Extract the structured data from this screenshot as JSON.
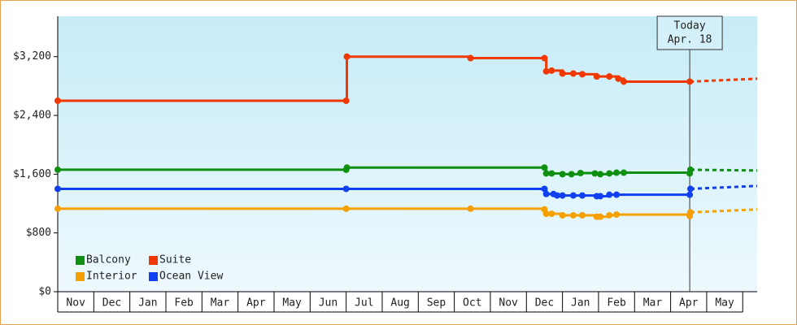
{
  "chart_data": {
    "type": "step-line",
    "x_categories": [
      "Nov",
      "Dec",
      "Jan",
      "Feb",
      "Mar",
      "Apr",
      "May",
      "Jun",
      "Jul",
      "Aug",
      "Sep",
      "Oct",
      "Nov",
      "Dec",
      "Jan",
      "Feb",
      "Mar",
      "Apr",
      "May"
    ],
    "xlim": [
      0,
      19.4
    ],
    "ylim": [
      0,
      3750
    ],
    "yticks": [
      {
        "value": 0,
        "label": "$0"
      },
      {
        "value": 800,
        "label": "$800"
      },
      {
        "value": 1600,
        "label": "$1,600"
      },
      {
        "value": 2400,
        "label": "$2,400"
      },
      {
        "value": 3200,
        "label": "$3,200"
      }
    ],
    "today_x": 17.53,
    "today_label": [
      "Today",
      "Apr. 18"
    ],
    "legend": "lower left",
    "series": [
      {
        "name": "Balcony",
        "color": "#109010",
        "x": [
          0,
          8.0,
          8.02,
          13.5,
          13.55,
          13.7,
          14.0,
          14.25,
          14.5,
          14.9,
          15.05,
          15.3,
          15.5,
          15.7,
          17.53,
          17.55
        ],
        "values": [
          1660,
          1660,
          1690,
          1690,
          1610,
          1610,
          1600,
          1600,
          1615,
          1610,
          1600,
          1610,
          1620,
          1620,
          1610,
          1660
        ],
        "projection": 1650
      },
      {
        "name": "Suite",
        "color": "#f03800",
        "x": [
          0,
          8.0,
          8.02,
          11.45,
          13.5,
          13.55,
          13.7,
          14.0,
          14.3,
          14.55,
          14.95,
          15.3,
          15.55,
          15.7,
          17.53
        ],
        "values": [
          2600,
          2600,
          3200,
          3180,
          3180,
          3000,
          3010,
          2970,
          2970,
          2960,
          2930,
          2930,
          2900,
          2860,
          2860
        ],
        "projection": 2900
      },
      {
        "name": "Interior",
        "color": "#f5a000",
        "x": [
          0,
          8.0,
          11.45,
          13.5,
          13.55,
          13.7,
          14.0,
          14.3,
          14.55,
          14.95,
          15.05,
          15.3,
          15.5,
          17.53,
          17.55
        ],
        "values": [
          1130,
          1130,
          1130,
          1120,
          1060,
          1060,
          1040,
          1040,
          1040,
          1020,
          1020,
          1040,
          1050,
          1030,
          1080
        ],
        "projection": 1120
      },
      {
        "name": "Ocean View",
        "color": "#1040f0",
        "x": [
          0,
          8.0,
          13.5,
          13.55,
          13.75,
          13.85,
          14.0,
          14.3,
          14.55,
          14.95,
          15.05,
          15.3,
          15.5,
          17.53,
          17.55
        ],
        "values": [
          1400,
          1400,
          1400,
          1330,
          1330,
          1310,
          1310,
          1310,
          1310,
          1300,
          1300,
          1320,
          1320,
          1320,
          1400
        ],
        "projection": 1440
      }
    ]
  }
}
